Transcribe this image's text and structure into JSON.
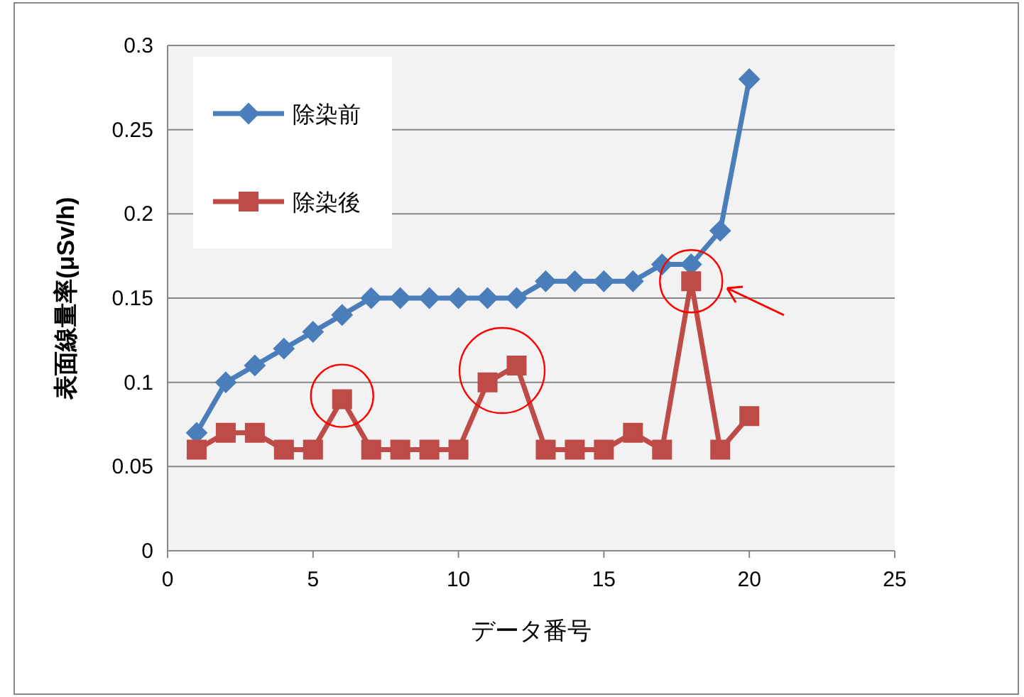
{
  "chart_data": {
    "type": "line",
    "xlabel": "データ番号",
    "ylabel": "表面線量率(μSv/h)",
    "x": [
      1,
      2,
      3,
      4,
      5,
      6,
      7,
      8,
      9,
      10,
      11,
      12,
      13,
      14,
      15,
      16,
      17,
      18,
      19,
      20
    ],
    "xlim": [
      0,
      25
    ],
    "xticks": [
      0,
      5,
      10,
      15,
      20,
      25
    ],
    "ylim": [
      0,
      0.3
    ],
    "yticks": [
      0,
      0.05,
      0.1,
      0.15,
      0.2,
      0.25,
      0.3
    ],
    "grid": "y",
    "legend": "top left",
    "series": [
      {
        "name": "除染前",
        "color": "#4a7ebb",
        "marker": "diamond",
        "values": [
          0.07,
          0.1,
          0.11,
          0.12,
          0.13,
          0.14,
          0.15,
          0.15,
          0.15,
          0.15,
          0.15,
          0.15,
          0.16,
          0.16,
          0.16,
          0.16,
          0.17,
          0.17,
          0.19,
          0.28
        ]
      },
      {
        "name": "除染後",
        "color": "#be4b48",
        "marker": "square",
        "values": [
          0.06,
          0.07,
          0.07,
          0.06,
          0.06,
          0.09,
          0.06,
          0.06,
          0.06,
          0.06,
          0.1,
          0.11,
          0.06,
          0.06,
          0.06,
          0.07,
          0.06,
          0.16,
          0.06,
          0.08
        ]
      }
    ]
  }
}
